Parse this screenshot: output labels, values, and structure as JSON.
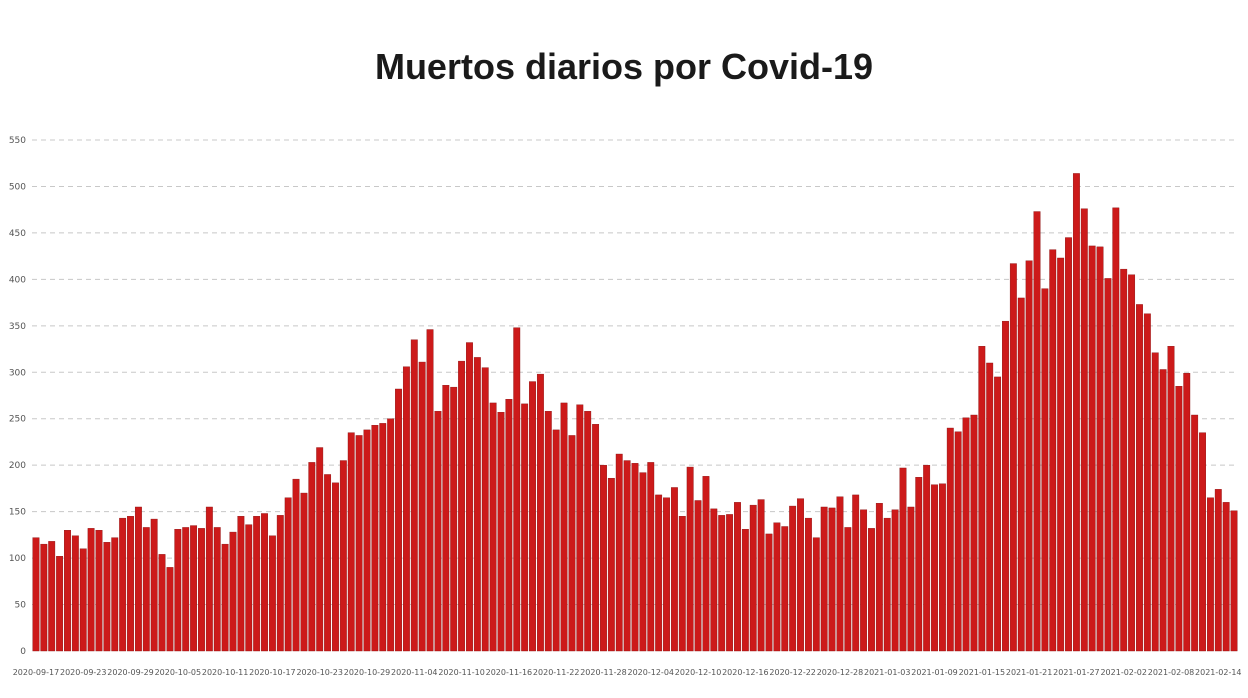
{
  "chart_data": {
    "type": "bar",
    "title": "Muertos diarios por Covid-19",
    "xlabel": "",
    "ylabel": "",
    "ylim": [
      0,
      550
    ],
    "yticks": [
      0,
      50,
      100,
      150,
      200,
      250,
      300,
      350,
      400,
      450,
      500,
      550
    ],
    "grid": true,
    "bar_color": "#cc1a1a",
    "start_date": "2020-09-17",
    "date_labels": [
      "2020-09-17",
      "2020-09-23",
      "2020-09-29",
      "2020-10-05",
      "2020-10-11",
      "2020-10-17",
      "2020-10-23",
      "2020-10-29",
      "2020-11-04",
      "2020-11-10",
      "2020-11-16",
      "2020-11-22",
      "2020-11-28",
      "2020-12-04",
      "2020-12-10",
      "2020-12-16",
      "2020-12-22",
      "2020-12-28",
      "2021-01-03",
      "2021-01-09",
      "2021-01-15",
      "2021-01-21",
      "2021-01-27",
      "2021-02-02",
      "2021-02-08",
      "2021-02-14"
    ],
    "values": [
      122,
      115,
      118,
      102,
      130,
      124,
      110,
      132,
      130,
      117,
      122,
      143,
      145,
      155,
      133,
      142,
      104,
      90,
      131,
      133,
      135,
      132,
      155,
      133,
      115,
      128,
      145,
      136,
      145,
      148,
      124,
      146,
      165,
      185,
      170,
      203,
      219,
      190,
      181,
      205,
      235,
      232,
      238,
      243,
      245,
      250,
      282,
      306,
      335,
      311,
      346,
      258,
      286,
      284,
      312,
      332,
      316,
      305,
      267,
      257,
      271,
      348,
      266,
      290,
      298,
      258,
      238,
      267,
      232,
      265,
      258,
      244,
      200,
      186,
      212,
      205,
      202,
      192,
      203,
      168,
      165,
      176,
      145,
      198,
      162,
      188,
      153,
      146,
      147,
      160,
      131,
      157,
      163,
      126,
      138,
      134,
      156,
      164,
      143,
      122,
      155,
      154,
      166,
      133,
      168,
      152,
      132,
      159,
      143,
      152,
      197,
      155,
      187,
      200,
      179,
      180,
      240,
      236,
      251,
      254,
      328,
      310,
      295,
      355,
      417,
      380,
      420,
      473,
      390,
      432,
      423,
      445,
      514,
      476,
      436,
      435,
      401,
      477,
      411,
      405,
      373,
      363,
      321,
      303,
      328,
      285,
      299,
      254,
      235,
      165,
      174,
      160,
      151
    ]
  }
}
